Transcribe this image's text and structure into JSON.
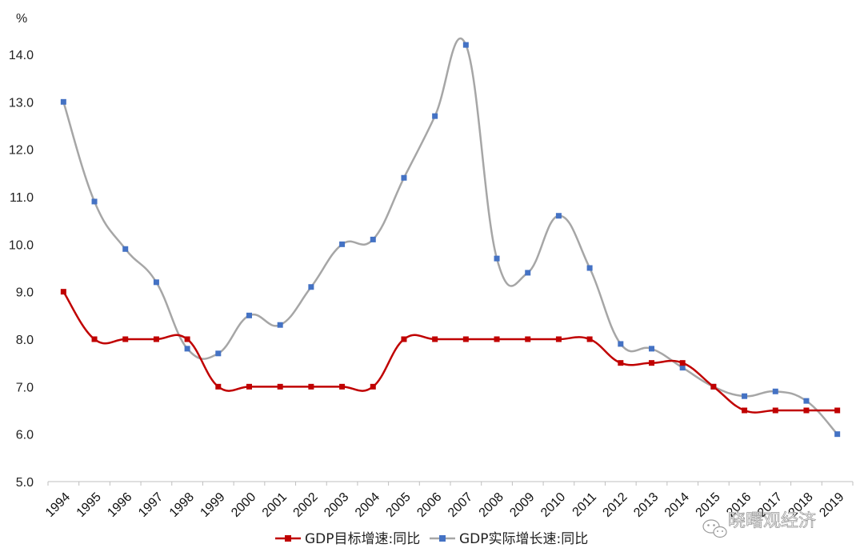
{
  "chart_data": {
    "type": "line",
    "ylabel": "%",
    "ylim": [
      5.0,
      14.0
    ],
    "yticks": [
      "5.0",
      "6.0",
      "7.0",
      "8.0",
      "9.0",
      "10.0",
      "11.0",
      "12.0",
      "13.0",
      "14.0"
    ],
    "categories": [
      "1994",
      "1995",
      "1996",
      "1997",
      "1998",
      "1999",
      "2000",
      "2001",
      "2002",
      "2003",
      "2004",
      "2005",
      "2006",
      "2007",
      "2008",
      "2009",
      "2010",
      "2011",
      "2012",
      "2013",
      "2014",
      "2015",
      "2016",
      "2017",
      "2018",
      "2019"
    ],
    "x_tick_labels": [
      "1994",
      "1995",
      "1996",
      "1997",
      "1998",
      "1999",
      "2000",
      "2001",
      "2002",
      "2003",
      "2004",
      "2005",
      "2006",
      "2007",
      "2008",
      "2009",
      "2010",
      "2011",
      "2012",
      "2013",
      "2014",
      "2015",
      "2016",
      "2017",
      "2018",
      "2019"
    ],
    "grid": false,
    "legend_position": "bottom",
    "series": [
      {
        "name": "GDP目标增速:同比",
        "line_color": "#c00000",
        "marker_color": "#c00000",
        "values": [
          9.0,
          8.0,
          8.0,
          8.0,
          8.0,
          7.0,
          7.0,
          7.0,
          7.0,
          7.0,
          7.0,
          8.0,
          8.0,
          8.0,
          8.0,
          8.0,
          8.0,
          8.0,
          7.5,
          7.5,
          7.5,
          7.0,
          6.5,
          6.5,
          6.5,
          6.5
        ]
      },
      {
        "name": "GDP实际增长速:同比",
        "line_color": "#a6a6a6",
        "marker_color": "#4472c4",
        "values": [
          13.0,
          10.9,
          9.9,
          9.2,
          7.8,
          7.7,
          8.5,
          8.3,
          9.1,
          10.0,
          10.1,
          11.4,
          12.7,
          14.2,
          9.7,
          9.4,
          10.6,
          9.5,
          7.9,
          7.8,
          7.4,
          7.0,
          6.8,
          6.9,
          6.7,
          6.0
        ]
      }
    ]
  },
  "watermark": {
    "text": "晓曙观经济",
    "icon": "wechat-icon"
  }
}
